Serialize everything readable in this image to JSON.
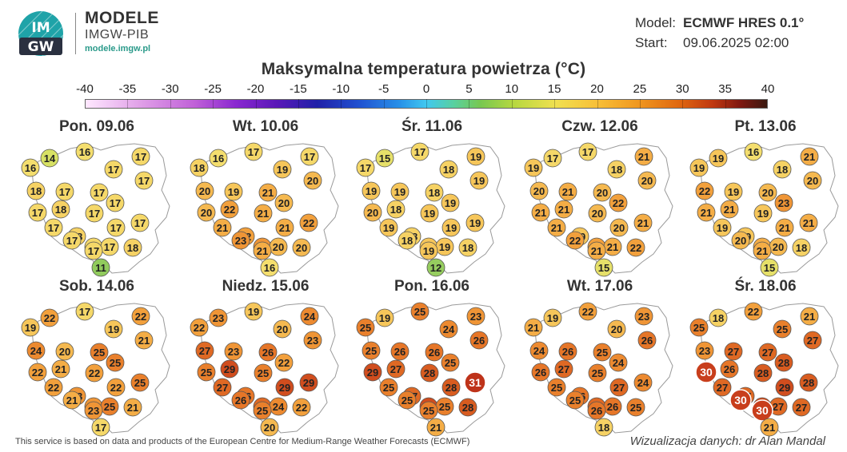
{
  "brand": {
    "logo_text_top": "IM",
    "logo_text_bottom": "GW",
    "title": "MODELE",
    "subtitle": "IMGW-PIB",
    "url": "modele.imgw.pl"
  },
  "meta": {
    "model_label": "Model:",
    "model_value": "ECMWF HRES 0.1°",
    "start_label": "Start:",
    "start_value": "09.06.2025 02:00"
  },
  "title": "Maksymalna temperatura powietrza (°C)",
  "scale": {
    "labels": [
      "-40",
      "-35",
      "-30",
      "-25",
      "-20",
      "-15",
      "-10",
      "-5",
      "0",
      "5",
      "10",
      "15",
      "20",
      "25",
      "30",
      "35",
      "40"
    ],
    "min": -40,
    "max": 40
  },
  "panels": [
    {
      "date": "Pon. 09.06",
      "values": [
        14,
        16,
        17,
        16,
        17,
        17,
        18,
        17,
        17,
        17,
        18,
        17,
        17,
        17,
        18,
        17,
        17,
        17,
        17,
        17,
        18,
        17,
        11
      ]
    },
    {
      "date": "Wt. 10.06",
      "values": [
        16,
        17,
        17,
        18,
        19,
        20,
        20,
        19,
        21,
        20,
        22,
        21,
        20,
        21,
        22,
        21,
        22,
        23,
        23,
        20,
        20,
        21,
        16
      ]
    },
    {
      "date": "Śr. 11.06",
      "values": [
        15,
        17,
        19,
        17,
        18,
        19,
        19,
        19,
        18,
        20,
        18,
        19,
        19,
        19,
        18,
        19,
        19,
        18,
        19,
        19,
        18,
        19,
        12
      ]
    },
    {
      "date": "Czw. 12.06",
      "values": [
        17,
        17,
        21,
        19,
        18,
        20,
        20,
        21,
        20,
        21,
        21,
        20,
        22,
        21,
        19,
        20,
        21,
        22,
        22,
        21,
        22,
        21,
        15
      ]
    },
    {
      "date": "Pt. 13.06",
      "values": [
        19,
        16,
        21,
        19,
        18,
        20,
        22,
        19,
        20,
        21,
        21,
        19,
        23,
        19,
        19,
        21,
        21,
        20,
        21,
        20,
        18,
        21,
        15
      ]
    },
    {
      "date": "Sob. 14.06",
      "values": [
        22,
        17,
        22,
        19,
        19,
        21,
        24,
        20,
        25,
        22,
        21,
        22,
        25,
        22,
        23,
        22,
        25,
        21,
        23,
        25,
        21,
        23,
        17
      ]
    },
    {
      "date": "Niedz. 15.06",
      "values": [
        23,
        19,
        24,
        22,
        20,
        23,
        27,
        23,
        26,
        25,
        29,
        25,
        22,
        27,
        26,
        29,
        29,
        26,
        27,
        24,
        22,
        25,
        20
      ]
    },
    {
      "date": "Pon. 16.06",
      "values": [
        19,
        25,
        23,
        25,
        24,
        26,
        25,
        26,
        26,
        29,
        27,
        28,
        25,
        25,
        27,
        28,
        31,
        25,
        29,
        25,
        28,
        25,
        21
      ]
    },
    {
      "date": "Wt. 17.06",
      "values": [
        19,
        22,
        23,
        21,
        20,
        26,
        24,
        26,
        25,
        26,
        27,
        25,
        24,
        25,
        26,
        27,
        24,
        25,
        27,
        26,
        25,
        26,
        18
      ]
    },
    {
      "date": "Śr. 18.06",
      "values": [
        18,
        22,
        21,
        25,
        25,
        27,
        23,
        27,
        27,
        30,
        26,
        28,
        28,
        27,
        27,
        29,
        28,
        30,
        29,
        27,
        27,
        30,
        21
      ]
    }
  ],
  "footer": {
    "source": "This service is based on data and products of the European Centre for Medium-Range Weather Forecasts (ECMWF)",
    "credit": "Wizualizacja danych: dr Alan Mandal"
  }
}
